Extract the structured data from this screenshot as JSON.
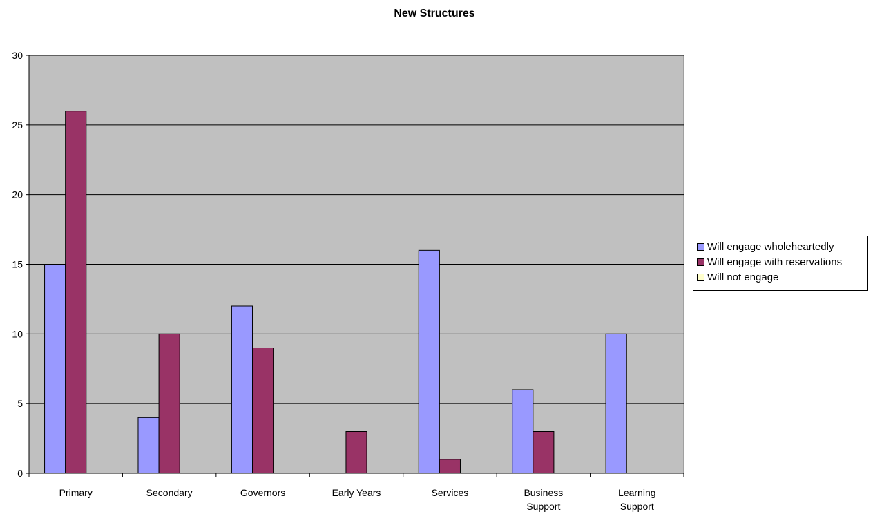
{
  "chart_data": {
    "type": "bar",
    "title": "New Structures",
    "xlabel": "",
    "ylabel": "",
    "categories": [
      [
        "Primary"
      ],
      [
        "Secondary"
      ],
      [
        "Governors"
      ],
      [
        "Early Years"
      ],
      [
        "Services"
      ],
      [
        "Business",
        "Support"
      ],
      [
        "Learning",
        "Support"
      ]
    ],
    "series": [
      {
        "name": "Will engage wholeheartedly",
        "color": "#9999ff",
        "values": [
          15,
          4,
          12,
          0,
          16,
          6,
          10
        ]
      },
      {
        "name": "Will engage with reservations",
        "color": "#993366",
        "values": [
          26,
          10,
          9,
          3,
          1,
          3,
          0
        ]
      },
      {
        "name": "Will not engage",
        "color": "#ffffcc",
        "values": [
          0,
          0,
          0,
          0,
          0,
          0,
          0
        ]
      }
    ],
    "ylim": [
      0,
      30
    ],
    "yticks": [
      0,
      5,
      10,
      15,
      20,
      25,
      30
    ],
    "grid": true,
    "plot_background": "#c0c0c0",
    "legend_position": "right"
  }
}
